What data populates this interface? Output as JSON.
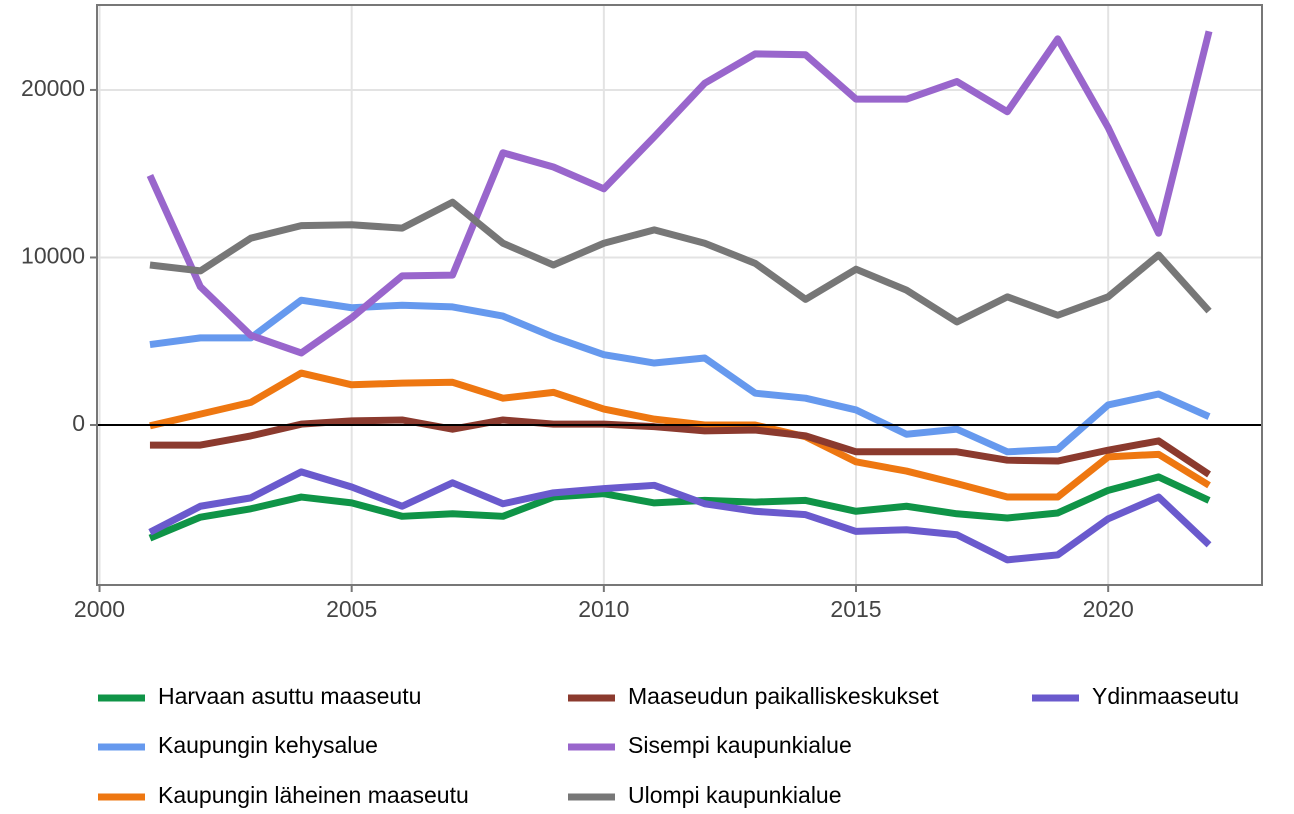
{
  "chart_data": {
    "type": "line",
    "x": [
      2001,
      2002,
      2003,
      2004,
      2005,
      2006,
      2007,
      2008,
      2009,
      2010,
      2011,
      2012,
      2013,
      2014,
      2015,
      2016,
      2017,
      2018,
      2019,
      2020,
      2021,
      2022
    ],
    "series": [
      {
        "name": "Harvaan asuttu maaseutu",
        "color": "#0f9447",
        "values": [
          -6750,
          -5500,
          -5000,
          -4300,
          -4650,
          -5450,
          -5300,
          -5450,
          -4300,
          -4100,
          -4650,
          -4500,
          -4600,
          -4500,
          -5150,
          -4850,
          -5300,
          -5550,
          -5250,
          -3900,
          -3100,
          -4500
        ]
      },
      {
        "name": "Kaupungin kehysalue",
        "color": "#6699ee",
        "values": [
          4800,
          5200,
          5200,
          7450,
          7000,
          7150,
          7050,
          6500,
          5250,
          4200,
          3700,
          4000,
          1900,
          1600,
          900,
          -550,
          -250,
          -1600,
          -1450,
          1200,
          1850,
          500
        ]
      },
      {
        "name": "Kaupungin läheinen maaseutu",
        "color": "#ee7711",
        "values": [
          -50,
          650,
          1350,
          3100,
          2400,
          2500,
          2550,
          1600,
          1950,
          950,
          350,
          0,
          0,
          -700,
          -2200,
          -2750,
          -3500,
          -4300,
          -4300,
          -1900,
          -1750,
          -3600
        ]
      },
      {
        "name": "Maaseudun paikalliskeskukset",
        "color": "#8b3a2e",
        "values": [
          -1200,
          -1200,
          -650,
          50,
          250,
          300,
          -250,
          300,
          50,
          50,
          -100,
          -350,
          -300,
          -650,
          -1600,
          -1600,
          -1600,
          -2100,
          -2150,
          -1500,
          -950,
          -2950
        ]
      },
      {
        "name": "Sisempi kaupunkialue",
        "color": "#9966cc",
        "values": [
          14900,
          8250,
          5350,
          4300,
          6400,
          8900,
          8950,
          16250,
          15400,
          14100,
          17200,
          20400,
          22150,
          22100,
          19450,
          19450,
          20500,
          18700,
          23050,
          17750,
          11450,
          23500
        ]
      },
      {
        "name": "Ulompi kaupunkialue",
        "color": "#777777",
        "values": [
          9550,
          9200,
          11150,
          11900,
          11950,
          11750,
          13300,
          10850,
          9550,
          10850,
          11650,
          10850,
          9650,
          7500,
          9300,
          8050,
          6150,
          7650,
          6550,
          7650,
          10150,
          6800
        ]
      },
      {
        "name": "Ydinmaaseutu",
        "color": "#6a5acd",
        "values": [
          -6400,
          -4850,
          -4350,
          -2800,
          -3700,
          -4850,
          -3450,
          -4700,
          -4050,
          -3800,
          -3600,
          -4700,
          -5150,
          -5350,
          -6350,
          -6250,
          -6550,
          -8050,
          -7750,
          -5600,
          -4300,
          -7150
        ]
      }
    ],
    "xlim": [
      1999.95,
      2023.05
    ],
    "xticks": [
      2000,
      2005,
      2010,
      2015,
      2020
    ],
    "ylim": [
      -9550,
      25070
    ],
    "yticks": [
      0,
      10000,
      20000
    ],
    "hline": 0,
    "grid": true,
    "legend": "bottom"
  }
}
